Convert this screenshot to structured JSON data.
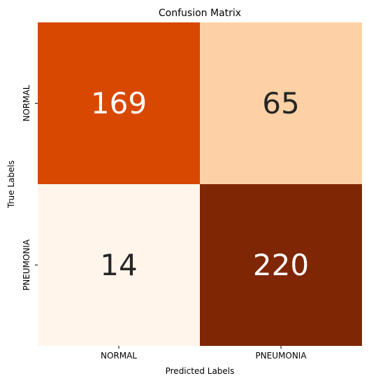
{
  "chart_data": {
    "type": "heatmap",
    "title": "Confusion Matrix",
    "xlabel": "Predicted Labels",
    "ylabel": "True Labels",
    "x_categories": [
      "NORMAL",
      "PNEUMONIA"
    ],
    "y_categories": [
      "NORMAL",
      "PNEUMONIA"
    ],
    "values": [
      [
        169,
        65
      ],
      [
        14,
        220
      ]
    ],
    "colormap": "Oranges",
    "colorbar": false,
    "cell_colors": [
      [
        "#d84801",
        "#fdd1a5"
      ],
      [
        "#fff5eb",
        "#7f2704"
      ]
    ],
    "text_colors": [
      [
        "#ffffff",
        "#262626"
      ],
      [
        "#262626",
        "#ffffff"
      ]
    ]
  }
}
